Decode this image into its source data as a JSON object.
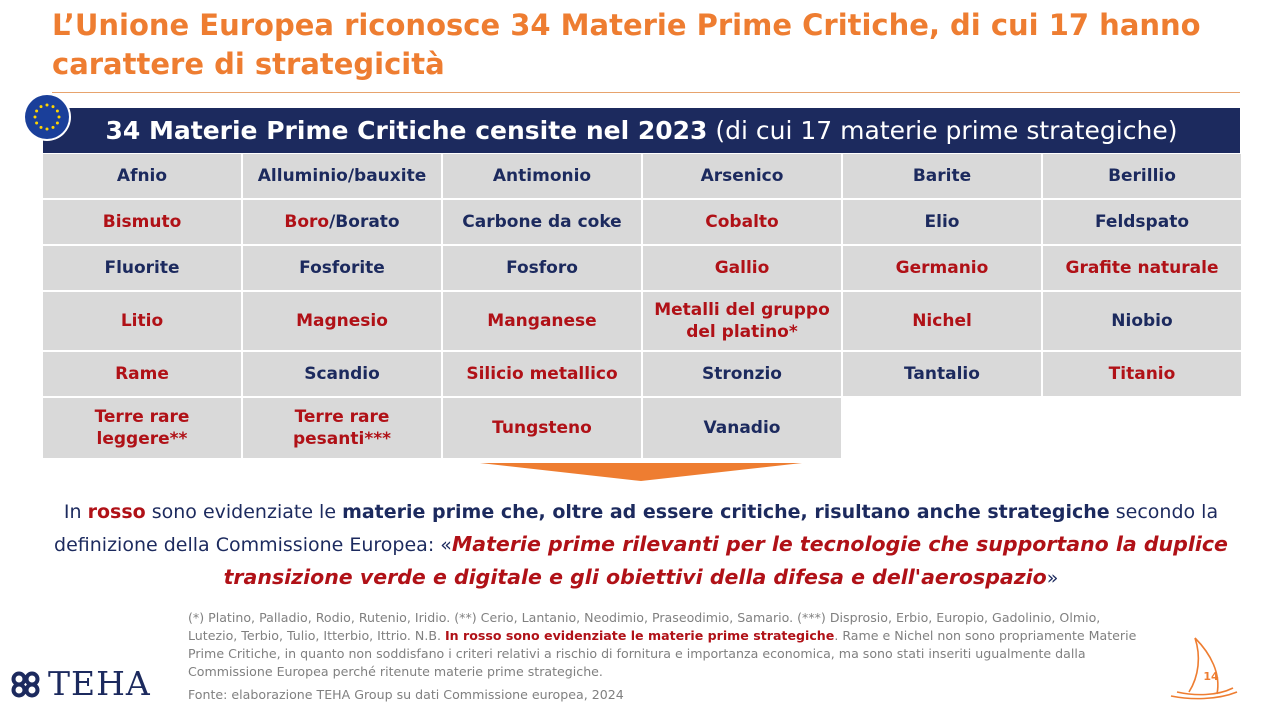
{
  "title": {
    "line1": "L’Unione Europea riconosce 34 Materie Prime Critiche, di cui 17 hanno",
    "line2": "carattere di strategicità"
  },
  "banner": {
    "bold": "34 Materie Prime Critiche censite nel 2023",
    "normal": " (di cui 17 materie prime strategiche)"
  },
  "materials": {
    "afnio": "Afnio",
    "alluminio": "Alluminio/bauxite",
    "antimonio": "Antimonio",
    "arsenico": "Arsenico",
    "barite": "Barite",
    "berillio": "Berillio",
    "bismuto": "Bismuto",
    "boro": "Boro",
    "borato": "/Borato",
    "carbone": "Carbone da coke",
    "cobalto": "Cobalto",
    "elio": "Elio",
    "feldspato": "Feldspato",
    "fluorite": "Fluorite",
    "fosforite": "Fosforite",
    "fosforo": "Fosforo",
    "gallio": "Gallio",
    "germanio": "Germanio",
    "grafite": "Grafite naturale",
    "litio": "Litio",
    "magnesio": "Magnesio",
    "manganese": "Manganese",
    "platino_1": "Metalli del gruppo",
    "platino_2": "del platino*",
    "nichel": "Nichel",
    "niobio": "Niobio",
    "rame": "Rame",
    "scandio": "Scandio",
    "silicio": "Silicio metallico",
    "stronzio": "Stronzio",
    "tantalio": "Tantalio",
    "titanio": "Titanio",
    "terre_leggere_1": "Terre rare",
    "terre_leggere_2": "leggere**",
    "terre_pesanti_1": "Terre rare",
    "terre_pesanti_2": "pesanti***",
    "tungsteno": "Tungsteno",
    "vanadio": "Vanadio"
  },
  "legend": {
    "p1": "In ",
    "p2": "rosso",
    "p3": " sono evidenziate le ",
    "p4": "materie prime che, oltre ad essere critiche, risultano anche strategiche",
    "p5": " secondo la definizione della Commissione Europea: «",
    "p6": "Materie prime rilevanti per le tecnologie che supportano la duplice transizione verde e digitale e gli obiettivi della difesa e dell'aerospazio",
    "p7": "»"
  },
  "notes": {
    "n1": "(*) Platino, Palladio, Rodio, Rutenio, Iridio. (**) Cerio, Lantanio, Neodimio, Praseodimio, Samario. (***) Disprosio, Erbio, Europio, Gadolinio, Olmio, Lutezio, Terbio, Tulio, Itterbio, Ittrio. N.B. ",
    "n2": "In rosso sono evidenziate le materie prime strategiche",
    "n3": ". Rame e Nichel non sono propriamente Materie Prime Critiche, in quanto non soddisfano i criteri relativi a rischio di fornitura e importanza economica, ma sono stati inseriti ugualmente dalla Commissione Europea perché ritenute materie prime strategiche.",
    "source": "Fonte: elaborazione TEHA Group su dati Commissione europea, 2024"
  },
  "logo": {
    "text": "TEHA"
  },
  "page_number": "14",
  "colors": {
    "orange": "#ee7d31",
    "navy": "#1c2a5e",
    "red": "#b01117",
    "cell_bg": "#d9d9d9",
    "note_gray": "#808080"
  }
}
